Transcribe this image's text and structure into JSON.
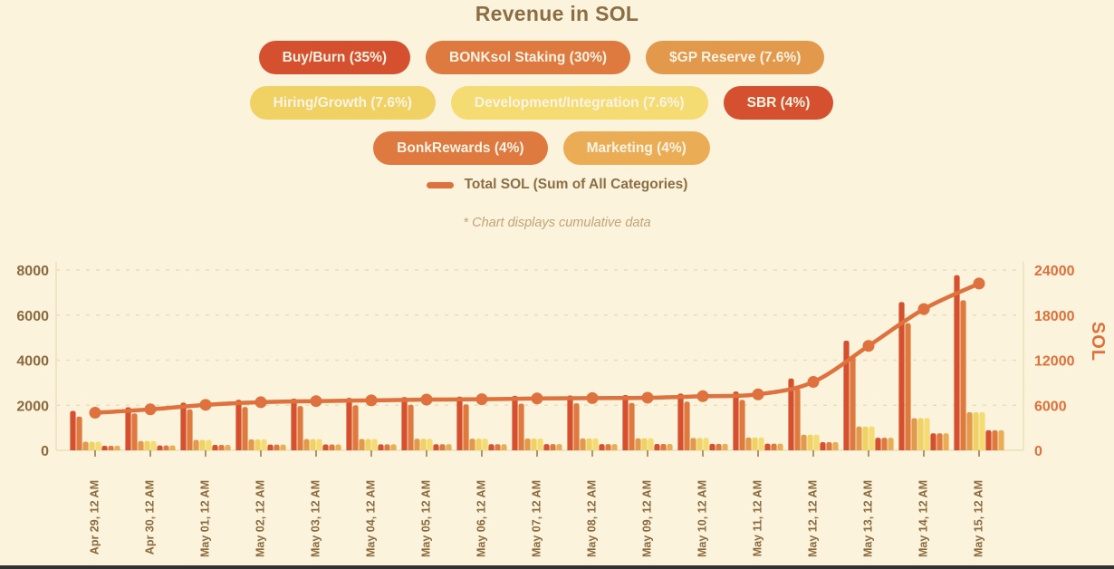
{
  "page": {
    "title": "Revenue in SOL",
    "note": "* Chart displays cumulative data",
    "background": "#FBF3DC"
  },
  "legend": {
    "pill_text_color": "#FCF3E3",
    "pills": [
      {
        "label": "Buy/Burn (35%)",
        "color": "#D5502F"
      },
      {
        "label": "BONKsol Staking (30%)",
        "color": "#DE7940"
      },
      {
        "label": "$GP Reserve (7.6%)",
        "color": "#E2994C"
      },
      {
        "label": "Hiring/Growth (7.6%)",
        "color": "#F0D164"
      },
      {
        "label": "Development/Integration (7.6%)",
        "color": "#F4DB72"
      },
      {
        "label": "SBR (4%)",
        "color": "#D5502F"
      },
      {
        "label": "BonkRewards (4%)",
        "color": "#DE7940"
      },
      {
        "label": "Marketing (4%)",
        "color": "#EAAD55"
      }
    ],
    "rows": [
      [
        0,
        1,
        2
      ],
      [
        3,
        4,
        5
      ],
      [
        6,
        7
      ]
    ],
    "line_legend": {
      "label": "Total SOL (Sum of All Categories)",
      "color": "#DE713D"
    }
  },
  "chart_data": {
    "type": "bar+line",
    "grid": "dashed horizontal",
    "categories": [
      "Apr 29, 12 AM",
      "Apr 30, 12 AM",
      "May 01, 12 AM",
      "May 02, 12 AM",
      "May 03, 12 AM",
      "May 04, 12 AM",
      "May 05, 12 AM",
      "May 06, 12 AM",
      "May 07, 12 AM",
      "May 08, 12 AM",
      "May 09, 12 AM",
      "May 10, 12 AM",
      "May 11, 12 AM",
      "May 12, 12 AM",
      "May 13, 12 AM",
      "May 14, 12 AM",
      "May 15, 12 AM"
    ],
    "series": [
      {
        "name": "Buy/Burn",
        "pct": 35,
        "color": "#D5502F",
        "values": [
          1750,
          1908,
          2118,
          2240,
          2293,
          2328,
          2363,
          2380,
          2415,
          2433,
          2450,
          2520,
          2608,
          3185,
          4865,
          6580,
          7770
        ]
      },
      {
        "name": "BONKsol Staking",
        "pct": 30,
        "color": "#DE7940",
        "values": [
          1500,
          1635,
          1815,
          1920,
          1965,
          1995,
          2025,
          2040,
          2070,
          2085,
          2100,
          2160,
          2235,
          2730,
          4170,
          5640,
          6660
        ]
      },
      {
        "name": "$GP Reserve",
        "pct": 7.6,
        "color": "#E2994C",
        "values": [
          380,
          414,
          460,
          486,
          498,
          505,
          513,
          517,
          524,
          528,
          532,
          547,
          566,
          692,
          1056,
          1429,
          1687
        ]
      },
      {
        "name": "Hiring/Growth",
        "pct": 7.6,
        "color": "#F0D164",
        "values": [
          380,
          414,
          460,
          486,
          498,
          505,
          513,
          517,
          524,
          528,
          532,
          547,
          566,
          692,
          1056,
          1429,
          1687
        ]
      },
      {
        "name": "Development/Integration",
        "pct": 7.6,
        "color": "#F4DB72",
        "values": [
          380,
          414,
          460,
          486,
          498,
          505,
          513,
          517,
          524,
          528,
          532,
          547,
          566,
          692,
          1056,
          1429,
          1687
        ]
      },
      {
        "name": "SBR",
        "pct": 4,
        "color": "#D5502F",
        "values": [
          200,
          218,
          242,
          256,
          262,
          266,
          270,
          272,
          276,
          278,
          280,
          288,
          298,
          364,
          556,
          752,
          888
        ]
      },
      {
        "name": "BonkRewards",
        "pct": 4,
        "color": "#DE7940",
        "values": [
          200,
          218,
          242,
          256,
          262,
          266,
          270,
          272,
          276,
          278,
          280,
          288,
          298,
          364,
          556,
          752,
          888
        ]
      },
      {
        "name": "Marketing",
        "pct": 4,
        "color": "#EAAD55",
        "values": [
          200,
          218,
          242,
          256,
          262,
          266,
          270,
          272,
          276,
          278,
          280,
          288,
          298,
          364,
          556,
          752,
          888
        ]
      }
    ],
    "line_series": {
      "name": "Total SOL (Sum of All Categories)",
      "color": "#DE713D",
      "axis": "right",
      "values": [
        5000,
        5450,
        6050,
        6400,
        6550,
        6650,
        6750,
        6800,
        6900,
        6950,
        7000,
        7200,
        7450,
        9100,
        13900,
        18800,
        22200
      ]
    },
    "left_axis": {
      "range": [
        0,
        8000
      ],
      "ticks": [
        0,
        2000,
        4000,
        6000,
        8000
      ],
      "color": "#8A6A3E"
    },
    "right_axis": {
      "range": [
        0,
        24000
      ],
      "ticks": [
        0,
        6000,
        12000,
        18000,
        24000
      ],
      "color": "#DE703C",
      "label": "SOL"
    }
  }
}
